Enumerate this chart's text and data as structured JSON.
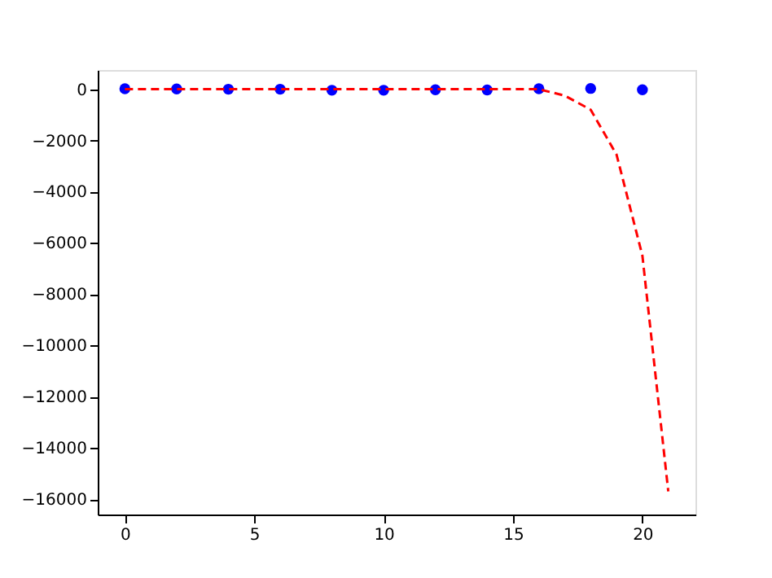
{
  "chart_data": {
    "type": "scatter",
    "xlim": [
      -1.05,
      22.05
    ],
    "ylim": [
      -16600,
      750
    ],
    "xticks": [
      0,
      5,
      10,
      15,
      20
    ],
    "yticks": [
      0,
      -2000,
      -4000,
      -6000,
      -8000,
      -10000,
      -12000,
      -14000,
      -16000
    ],
    "grid": false,
    "series": [
      {
        "type": "scatter",
        "color": "#0000ff",
        "marker": "circle",
        "x": [
          0,
          2,
          4,
          6,
          8,
          10,
          12,
          14,
          16,
          18,
          20
        ],
        "values": [
          20,
          10,
          0,
          0,
          -40,
          -40,
          -20,
          -30,
          20,
          30,
          -20
        ]
      },
      {
        "type": "line",
        "color": "#ff0000",
        "line_style": "dashed",
        "marker": "none",
        "x": [
          0,
          5,
          10,
          15,
          16,
          17,
          18,
          19,
          20,
          21
        ],
        "values": [
          0,
          0,
          0,
          0,
          0,
          -250,
          -800,
          -2550,
          -6500,
          -15700
        ]
      }
    ]
  }
}
